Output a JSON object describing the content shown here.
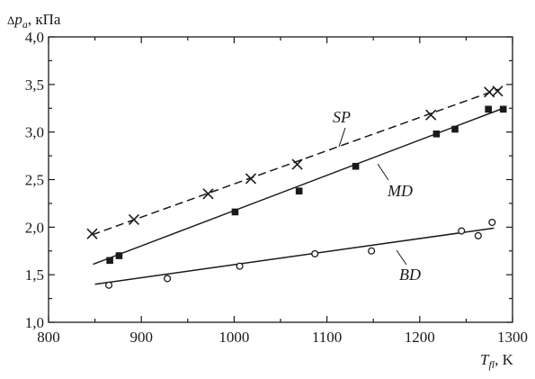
{
  "chart_data": {
    "type": "line",
    "title": "",
    "xlabel": {
      "symbol": "T",
      "subscript": "fl",
      "unit": ", K"
    },
    "ylabel": {
      "prefix": "Δ",
      "symbol": "p",
      "subscript": "a",
      "unit": ", кПа"
    },
    "xlim": [
      800,
      1300
    ],
    "ylim": [
      1.0,
      4.0
    ],
    "xticks": [
      800,
      900,
      1000,
      1100,
      1200,
      1300
    ],
    "yticks": [
      "1,0",
      "1,5",
      "2,0",
      "2,5",
      "3,0",
      "3,5",
      "4,0"
    ],
    "grid": false,
    "series": [
      {
        "name": "SP",
        "marker": "x",
        "line": "dashed",
        "fit": [
          [
            847,
            1.92
          ],
          [
            1285,
            3.45
          ]
        ],
        "points": [
          [
            847,
            1.93
          ],
          [
            892,
            2.08
          ],
          [
            972,
            2.35
          ],
          [
            1018,
            2.51
          ],
          [
            1068,
            2.66
          ],
          [
            1212,
            3.18
          ],
          [
            1275,
            3.42
          ],
          [
            1284,
            3.43
          ]
        ]
      },
      {
        "name": "MD",
        "marker": "square",
        "line": "solid",
        "fit": [
          [
            848,
            1.61
          ],
          [
            1290,
            3.25
          ]
        ],
        "points": [
          [
            866,
            1.65
          ],
          [
            876,
            1.7
          ],
          [
            1001,
            2.16
          ],
          [
            1070,
            2.38
          ],
          [
            1131,
            2.64
          ],
          [
            1218,
            2.98
          ],
          [
            1238,
            3.03
          ],
          [
            1274,
            3.24
          ],
          [
            1290,
            3.24
          ]
        ]
      },
      {
        "name": "BD",
        "marker": "circle",
        "line": "solid",
        "fit": [
          [
            850,
            1.4
          ],
          [
            1280,
            1.99
          ]
        ],
        "points": [
          [
            865,
            1.39
          ],
          [
            928,
            1.46
          ],
          [
            1006,
            1.59
          ],
          [
            1087,
            1.72
          ],
          [
            1148,
            1.75
          ],
          [
            1245,
            1.96
          ],
          [
            1263,
            1.91
          ],
          [
            1278,
            2.05
          ]
        ]
      }
    ]
  }
}
